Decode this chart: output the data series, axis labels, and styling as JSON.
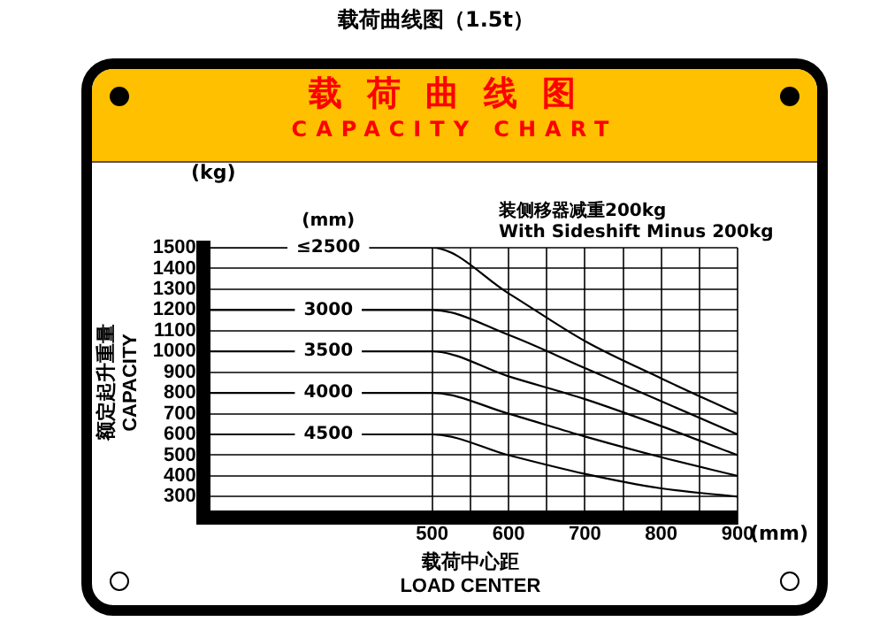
{
  "chart_data": {
    "type": "line",
    "title": "载荷曲线图（1.5t）",
    "subtitle": "载荷曲线图\nCAPACITY CHART",
    "ylabel": "额定起升重量\nCAPACITY",
    "xlabel": "载荷中心距\nLOAD CENTER",
    "legend_title": "(mm)",
    "annotations": [
      "(kg)",
      "装侧移器减重200kg\nWith Sideshift Minus 200kg",
      "(mm)"
    ],
    "xlim": [
      200,
      900
    ],
    "xticks": [
      500,
      {
        "value": 550,
        "label": null
      },
      600,
      {
        "value": 650,
        "label": null
      },
      700,
      {
        "value": 750,
        "label": null
      },
      800,
      {
        "value": 850,
        "label": null
      },
      900
    ],
    "ylim": [
      200,
      1500
    ],
    "yticks": [
      300,
      400,
      500,
      600,
      700,
      800,
      900,
      1000,
      1100,
      1200,
      1300,
      1400,
      1500
    ],
    "grid": true,
    "legend": false,
    "marker": "none",
    "series": [
      {
        "name": "≤2500",
        "color": "#000000",
        "x": [
          200,
          500,
          600,
          700,
          800,
          900
        ],
        "values": [
          1500,
          1500,
          1280,
          1050,
          870,
          700
        ]
      },
      {
        "name": "3000",
        "color": "#000000",
        "x": [
          200,
          500,
          600,
          700,
          800,
          900
        ],
        "values": [
          1200,
          1200,
          1080,
          920,
          760,
          600
        ]
      },
      {
        "name": "3500",
        "color": "#000000",
        "x": [
          200,
          500,
          600,
          700,
          800,
          900
        ],
        "values": [
          1000,
          1000,
          880,
          770,
          640,
          500
        ]
      },
      {
        "name": "4000",
        "color": "#000000",
        "x": [
          200,
          500,
          600,
          700,
          800,
          900
        ],
        "values": [
          800,
          800,
          700,
          590,
          490,
          400
        ]
      },
      {
        "name": "4500",
        "color": "#000000",
        "x": [
          200,
          500,
          600,
          700,
          800,
          900
        ],
        "values": [
          600,
          600,
          500,
          410,
          340,
          300
        ]
      }
    ]
  }
}
